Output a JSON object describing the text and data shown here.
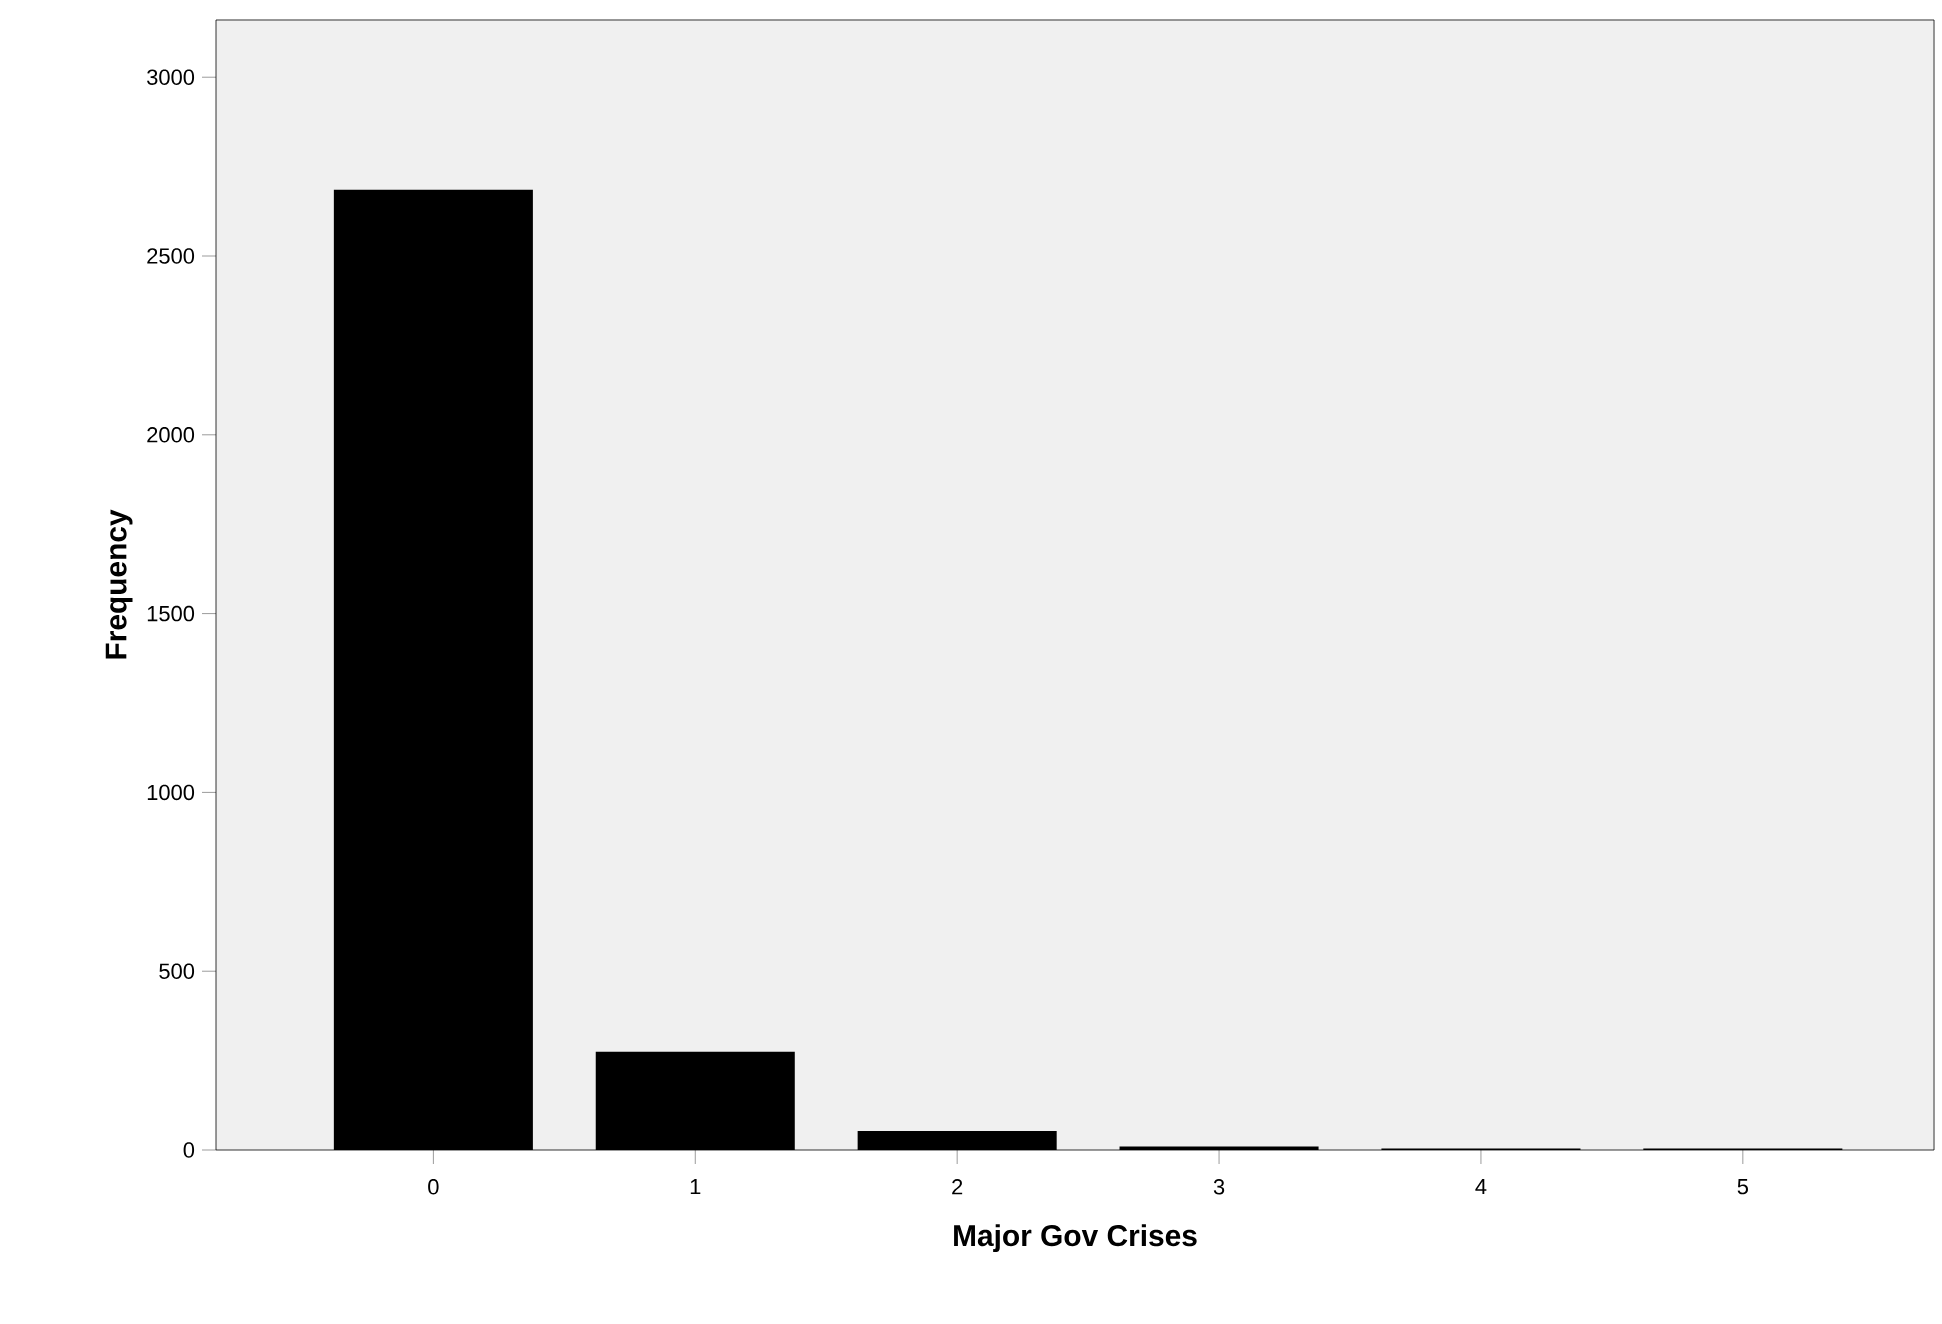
{
  "chart_data": {
    "type": "bar",
    "xlabel": "Major Gov Crises",
    "ylabel": "Frequency",
    "categories": [
      "0",
      "1",
      "2",
      "3",
      "4",
      "5"
    ],
    "values": [
      2685,
      275,
      53,
      10,
      4,
      4
    ],
    "color": "#000000",
    "ylim": [
      0,
      3160
    ],
    "yticks": [
      0,
      500,
      1000,
      1500,
      2000,
      2500,
      3000
    ],
    "grid": false
  }
}
